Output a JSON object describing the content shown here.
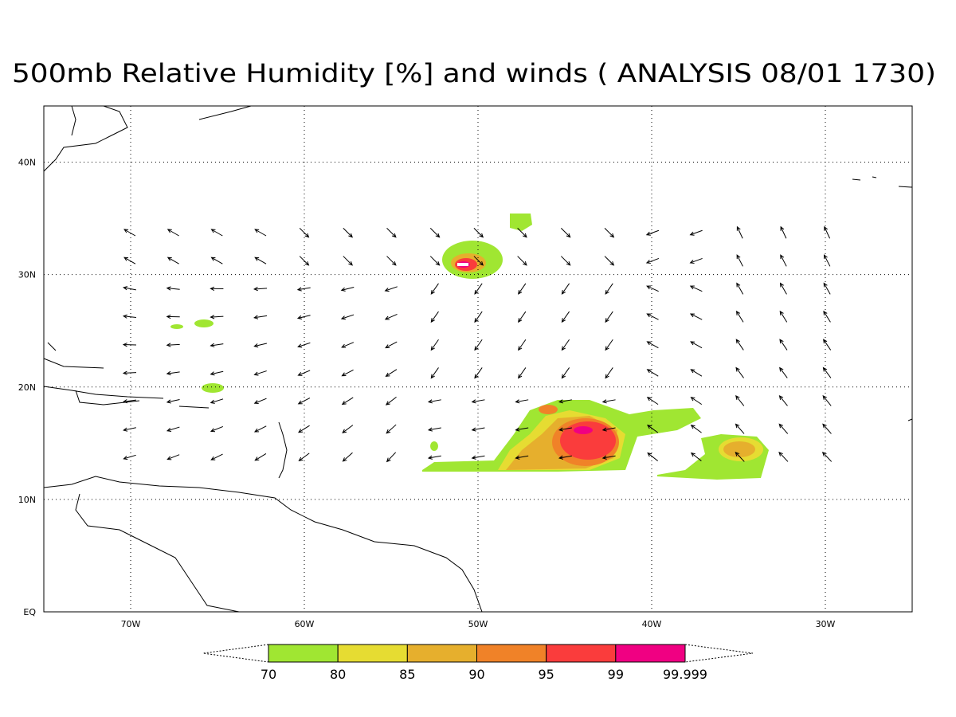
{
  "map": {
    "title": "500mb Relative Humidity [%] and winds ( ANALYSIS 08/01 1730)",
    "xlim": [
      -75,
      -25
    ],
    "ylim": [
      0,
      45
    ],
    "xticks": [
      {
        "value": -70,
        "label": "70W"
      },
      {
        "value": -60,
        "label": "60W"
      },
      {
        "value": -50,
        "label": "50W"
      },
      {
        "value": -40,
        "label": "40W"
      },
      {
        "value": -30,
        "label": "30W"
      }
    ],
    "yticks": [
      {
        "value": 0,
        "label": "EQ"
      },
      {
        "value": 10,
        "label": "10N"
      },
      {
        "value": 20,
        "label": "20N"
      },
      {
        "value": 30,
        "label": "30N"
      },
      {
        "value": 40,
        "label": "40N"
      }
    ],
    "colorbar": {
      "levels": [
        70,
        80,
        85,
        90,
        95,
        99,
        99.999
      ],
      "colors": [
        "#a0e632",
        "#e6dc32",
        "#e6af2d",
        "#f08228",
        "#fa3c3c",
        "#f00082"
      ]
    }
  }
}
